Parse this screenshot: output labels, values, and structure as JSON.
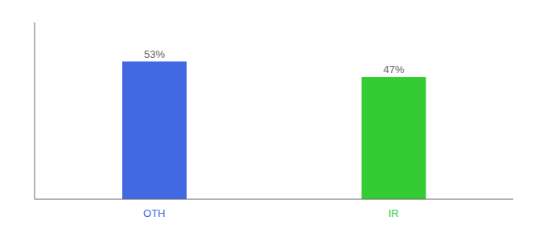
{
  "chart_data": {
    "type": "bar",
    "categories": [
      "OTH",
      "IR"
    ],
    "values": [
      53,
      47
    ],
    "value_labels": [
      "53%",
      "47%"
    ],
    "colors": [
      "#4169e1",
      "#33cc33"
    ],
    "ylim": [
      0,
      68
    ],
    "tick_labels": "x",
    "data_labels": true
  }
}
